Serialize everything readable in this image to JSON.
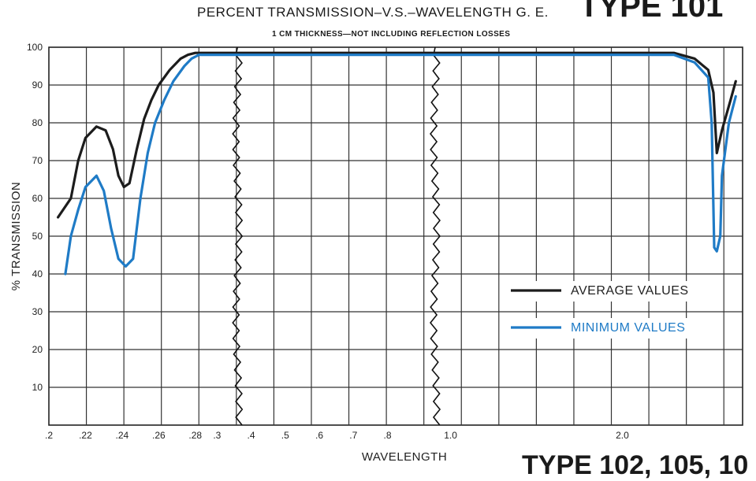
{
  "header": {
    "title": "PERCENT TRANSMISSION–V.S.–WAVELENGTH G. E.",
    "type_label": "TYPE 101",
    "subtitle": "1 CM THICKNESS—NOT INCLUDING REFLECTION LOSSES",
    "footer_type": "TYPE 102, 105, 10"
  },
  "chart_data": {
    "type": "line",
    "title": "PERCENT TRANSMISSION–V.S.–WAVELENGTH G. E. TYPE 101",
    "subtitle": "1 CM THICKNESS—NOT INCLUDING REFLECTION LOSSES",
    "xlabel": "WAVELENGTH",
    "ylabel": "% TRANSMISSION",
    "ylim": [
      0,
      100
    ],
    "yticks": [
      10,
      20,
      30,
      40,
      50,
      60,
      70,
      80,
      90,
      100
    ],
    "x_axis_segments": [
      {
        "range": [
          0.2,
          0.29
        ],
        "ticks": [
          0.2,
          0.22,
          0.24,
          0.26,
          0.28
        ],
        "tick_labels": [
          ".2",
          ".22",
          ".24",
          ".26",
          ".28"
        ]
      },
      {
        "range": [
          0.29,
          0.97
        ],
        "ticks": [
          0.3,
          0.4,
          0.5,
          0.6,
          0.7,
          0.8
        ],
        "tick_labels": [
          ".3",
          ".4",
          ".5",
          ".6",
          ".7",
          ".8"
        ]
      },
      {
        "range": [
          0.97,
          2.7
        ],
        "ticks": [
          1.0,
          2.0
        ],
        "tick_labels": [
          "1.0",
          "2.0"
        ]
      }
    ],
    "axis_breaks": [
      0.36,
      0.94
    ],
    "grid": true,
    "legend": {
      "position": "right",
      "entries": [
        "AVERAGE VALUES",
        "MINIMUM VALUES"
      ]
    },
    "series": [
      {
        "name": "AVERAGE VALUES",
        "color": "#1c1c1c",
        "points": [
          [
            0.205,
            55
          ],
          [
            0.212,
            60
          ],
          [
            0.216,
            70
          ],
          [
            0.22,
            76
          ],
          [
            0.226,
            79
          ],
          [
            0.231,
            78
          ],
          [
            0.235,
            73
          ],
          [
            0.238,
            66
          ],
          [
            0.241,
            63
          ],
          [
            0.244,
            64
          ],
          [
            0.248,
            73
          ],
          [
            0.252,
            81
          ],
          [
            0.256,
            86
          ],
          [
            0.26,
            90
          ],
          [
            0.266,
            94
          ],
          [
            0.272,
            97
          ],
          [
            0.276,
            98
          ],
          [
            0.28,
            98.5
          ],
          [
            0.29,
            98.5
          ],
          [
            0.3,
            98.5
          ],
          [
            0.4,
            98.5
          ],
          [
            0.5,
            98.5
          ],
          [
            0.6,
            98.5
          ],
          [
            0.7,
            98.5
          ],
          [
            0.8,
            98.5
          ],
          [
            0.9,
            98.5
          ],
          [
            1.0,
            98.5
          ],
          [
            1.5,
            98.5
          ],
          [
            2.0,
            98.5
          ],
          [
            2.3,
            98.5
          ],
          [
            2.42,
            97
          ],
          [
            2.5,
            94
          ],
          [
            2.53,
            88
          ],
          [
            2.55,
            72
          ],
          [
            2.58,
            78
          ],
          [
            2.63,
            86
          ],
          [
            2.66,
            91
          ]
        ]
      },
      {
        "name": "MINIMUM VALUES",
        "color": "#1f7bc6",
        "points": [
          [
            0.209,
            40
          ],
          [
            0.212,
            50
          ],
          [
            0.216,
            57
          ],
          [
            0.22,
            63
          ],
          [
            0.226,
            66
          ],
          [
            0.23,
            62
          ],
          [
            0.234,
            52
          ],
          [
            0.238,
            44
          ],
          [
            0.242,
            42
          ],
          [
            0.246,
            44
          ],
          [
            0.25,
            60
          ],
          [
            0.254,
            72
          ],
          [
            0.258,
            80
          ],
          [
            0.263,
            86
          ],
          [
            0.268,
            91
          ],
          [
            0.274,
            95
          ],
          [
            0.278,
            97
          ],
          [
            0.282,
            98
          ],
          [
            0.29,
            98
          ],
          [
            0.3,
            98
          ],
          [
            0.4,
            98
          ],
          [
            0.5,
            98
          ],
          [
            0.6,
            98
          ],
          [
            0.7,
            98
          ],
          [
            0.8,
            98
          ],
          [
            0.9,
            98
          ],
          [
            1.0,
            98
          ],
          [
            1.5,
            98
          ],
          [
            2.0,
            98
          ],
          [
            2.3,
            98
          ],
          [
            2.42,
            96
          ],
          [
            2.5,
            92
          ],
          [
            2.52,
            80
          ],
          [
            2.535,
            47
          ],
          [
            2.55,
            46
          ],
          [
            2.57,
            50
          ],
          [
            2.58,
            66
          ],
          [
            2.62,
            80
          ],
          [
            2.66,
            87
          ]
        ]
      }
    ]
  }
}
